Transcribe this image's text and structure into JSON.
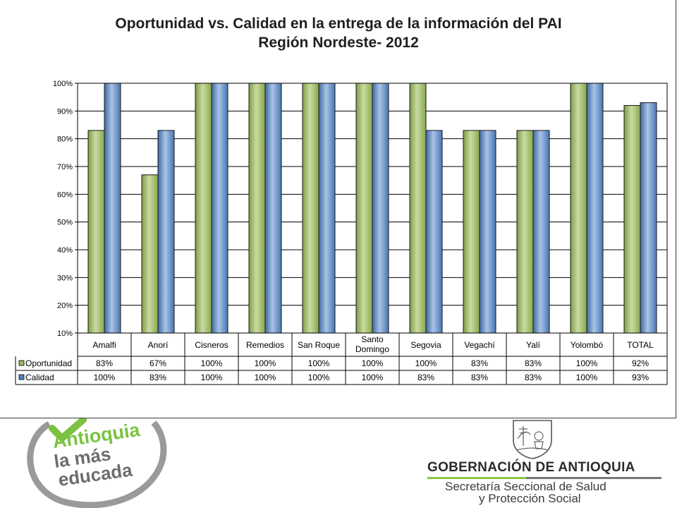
{
  "chart_data": {
    "type": "bar",
    "title_line1": "Oportunidad vs. Calidad en la entrega de la información del PAI",
    "title_line2": "Región Nordeste- 2012",
    "xlabel": "",
    "ylabel": "",
    "ylim": [
      0.1,
      1.0
    ],
    "yticks": [
      "10%",
      "20%",
      "30%",
      "40%",
      "50%",
      "60%",
      "70%",
      "80%",
      "90%",
      "100%"
    ],
    "categories": [
      "Amalfi",
      "Anorí",
      "Cisneros",
      "Remedios",
      "San Roque",
      "Santo Domingo",
      "Segovia",
      "Vegachí",
      "Yalí",
      "Yolombó",
      "TOTAL"
    ],
    "series": [
      {
        "name": "Oportunidad",
        "color": "#9bbb59",
        "values": [
          0.83,
          0.67,
          1.0,
          1.0,
          1.0,
          1.0,
          1.0,
          0.83,
          0.83,
          1.0,
          0.92
        ],
        "labels": [
          "83%",
          "67%",
          "100%",
          "100%",
          "100%",
          "100%",
          "100%",
          "83%",
          "83%",
          "100%",
          "92%"
        ]
      },
      {
        "name": "Calidad",
        "color": "#4f81bd",
        "values": [
          1.0,
          0.83,
          1.0,
          1.0,
          1.0,
          1.0,
          0.83,
          0.83,
          0.83,
          1.0,
          0.93
        ],
        "labels": [
          "100%",
          "83%",
          "100%",
          "100%",
          "100%",
          "100%",
          "83%",
          "83%",
          "83%",
          "100%",
          "93%"
        ]
      }
    ],
    "grid": true,
    "legend": "data-table"
  },
  "footer": {
    "logo_line1": "Antioquia",
    "logo_line2": "la más",
    "logo_line3": "educada",
    "gov_name": "GOBERNACIÓN DE ANTIOQUIA",
    "secretaria_line1": "Secretaría Seccional de Salud",
    "secretaria_line2": "y Protección Social"
  }
}
